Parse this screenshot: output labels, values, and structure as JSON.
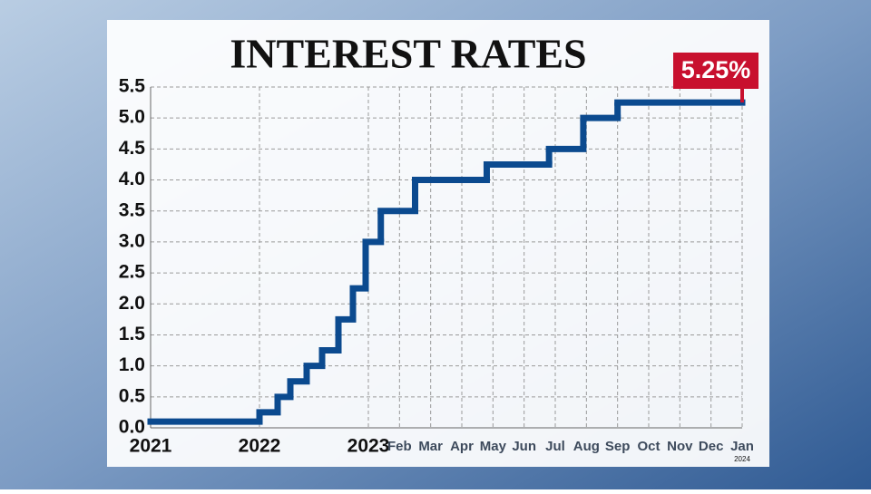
{
  "chart_data": {
    "type": "step",
    "title": "INTEREST RATES",
    "annotation": {
      "text": "5.25%",
      "color": "#c8102e"
    },
    "xlim": [
      0,
      36
    ],
    "xticks": [
      {
        "value": 0,
        "label": "2021"
      },
      {
        "value": 12,
        "label": "2022"
      },
      {
        "value": 24,
        "label": "2023"
      },
      {
        "value": 25,
        "label": "Feb"
      },
      {
        "value": 26,
        "label": "Mar"
      },
      {
        "value": 27,
        "label": "Apr"
      },
      {
        "value": 28,
        "label": "May"
      },
      {
        "value": 29,
        "label": "Jun"
      },
      {
        "value": 30,
        "label": "Jul"
      },
      {
        "value": 31,
        "label": "Aug"
      },
      {
        "value": 32,
        "label": "Sep"
      },
      {
        "value": 33,
        "label": "Oct"
      },
      {
        "value": 34,
        "label": "Nov"
      },
      {
        "value": 35,
        "label": "Dec"
      },
      {
        "value": 36,
        "label": "Jan",
        "sublabel": "2024"
      }
    ],
    "ylim": [
      0,
      5.5
    ],
    "yticks": [
      {
        "value": 0,
        "label": "0.0"
      },
      0.5,
      {
        "value": 1,
        "label": "1.0"
      },
      1.5,
      {
        "value": 2,
        "label": "2.0"
      },
      2.5,
      {
        "value": 3,
        "label": "3.0"
      },
      3.5,
      {
        "value": 4,
        "label": "4.0"
      },
      4.5,
      {
        "value": 5,
        "label": "5.0"
      },
      5.5
    ],
    "grid": true,
    "series": [
      {
        "color": "#0b4a8f",
        "x": [
          0,
          12,
          14,
          15.4,
          17.2,
          18.9,
          20.7,
          22.3,
          23.7,
          24.4,
          25.5,
          27.8,
          29.8,
          30.9,
          32
        ],
        "values": [
          0.1,
          0.25,
          0.5,
          0.75,
          1.0,
          1.25,
          1.75,
          2.25,
          3.0,
          3.5,
          4.0,
          4.25,
          4.5,
          5.0,
          5.25
        ]
      }
    ]
  }
}
